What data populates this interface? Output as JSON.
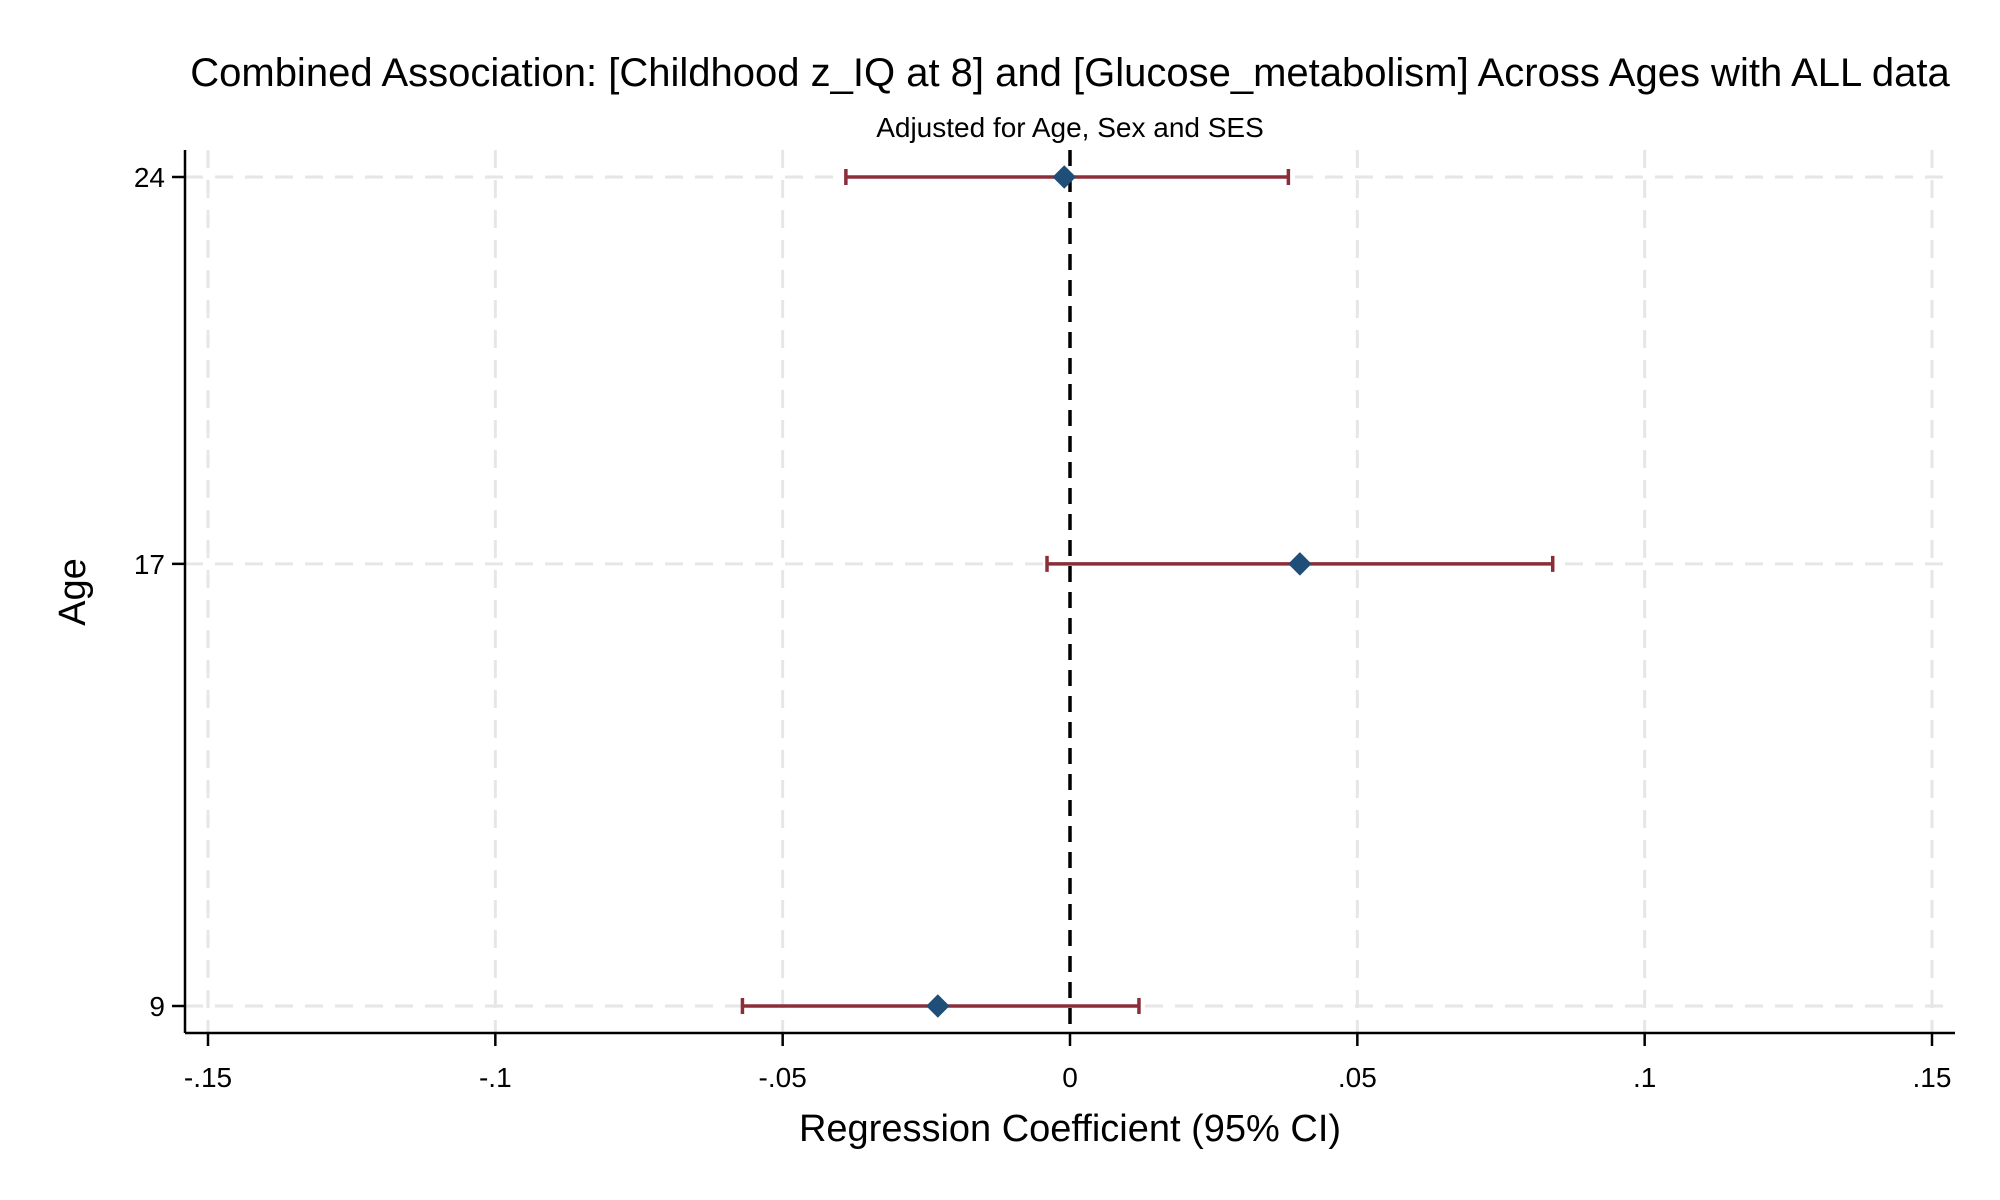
{
  "chart_data": {
    "type": "scatter",
    "title": "Combined Association: [Childhood z_IQ at 8] and [Glucose_metabolism] Across Ages with ALL data",
    "subtitle": "Adjusted for Age, Sex and SES",
    "xlabel": "Regression Coefficient (95% CI)",
    "ylabel": "Age",
    "xlim": [
      -0.15,
      0.15
    ],
    "ylim": [
      9,
      24
    ],
    "x_ticks": [
      -0.15,
      -0.1,
      -0.05,
      0,
      0.05,
      0.1,
      0.15
    ],
    "x_tick_labels": [
      "-.15",
      "-.1",
      "-.05",
      "0",
      ".05",
      ".1",
      ".15"
    ],
    "y_ticks": [
      9,
      17,
      24
    ],
    "y_tick_labels": [
      "9",
      "17",
      "24"
    ],
    "grid": true,
    "reference_line_x": 0,
    "points": [
      {
        "age": 24,
        "estimate": -0.001,
        "ci_low": -0.039,
        "ci_high": 0.038
      },
      {
        "age": 17,
        "estimate": 0.04,
        "ci_low": -0.004,
        "ci_high": 0.084
      },
      {
        "age": 9,
        "estimate": -0.023,
        "ci_low": -0.057,
        "ci_high": 0.012
      }
    ],
    "colors": {
      "marker": "#1f4e79",
      "error_bar": "#8b2e3a",
      "grid": "#e6e6e6",
      "reference_line": "#000000"
    }
  }
}
